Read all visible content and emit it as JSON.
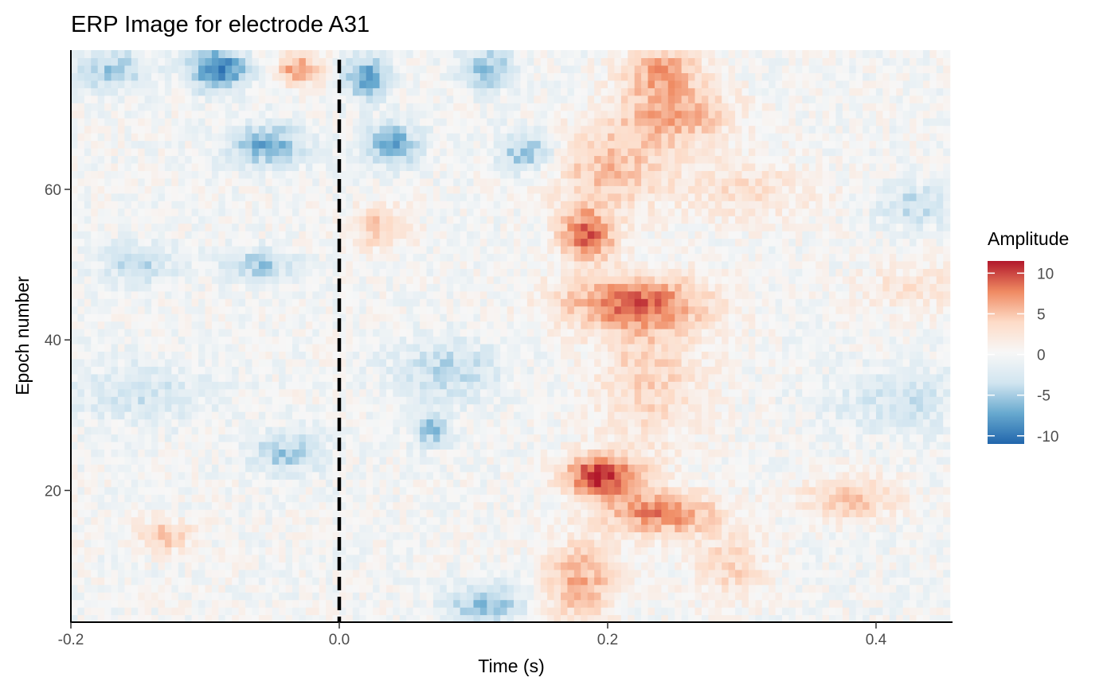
{
  "chart_data": {
    "type": "heatmap",
    "title": "ERP Image for electrode A31",
    "xlabel": "Time (s)",
    "ylabel": "Epoch number",
    "xlim": [
      -0.2,
      0.457
    ],
    "ylim": [
      2.5,
      78.5
    ],
    "x_ticks": [
      -0.2,
      0.0,
      0.2,
      0.4
    ],
    "x_tick_labels": [
      "-0.2",
      "0.0",
      "0.2",
      "0.4"
    ],
    "y_ticks": [
      20,
      40,
      60
    ],
    "y_tick_labels": [
      "20",
      "40",
      "60"
    ],
    "epochs": [
      3,
      78
    ],
    "time_step": 0.005,
    "event_marker": {
      "x": 0.0,
      "style": "dashed"
    },
    "legend": {
      "title": "Amplitude",
      "position": "right",
      "range": [
        -11,
        11.5
      ],
      "ticks": [
        10,
        5,
        0,
        -5,
        -10
      ],
      "tick_labels": [
        "10",
        "5",
        "0",
        "-5",
        "-10"
      ]
    },
    "colors": {
      "high": "#b2182b",
      "mid_high": "#ef8a62",
      "light_high": "#fddbc7",
      "zero": "#f7f7f7",
      "light_low": "#d1e5f0",
      "mid_low": "#67a9cf",
      "low": "#2166ac"
    },
    "amplitude_blobs": [
      {
        "t": 0.24,
        "e": 76,
        "amp": 6,
        "st": 0.02,
        "se": 2.5
      },
      {
        "t": 0.25,
        "e": 70,
        "amp": 6,
        "st": 0.03,
        "se": 3
      },
      {
        "t": 0.185,
        "e": 54,
        "amp": 9,
        "st": 0.015,
        "se": 2.5
      },
      {
        "t": 0.22,
        "e": 45,
        "amp": 8,
        "st": 0.04,
        "se": 2.5
      },
      {
        "t": 0.195,
        "e": 22,
        "amp": 11,
        "st": 0.02,
        "se": 2
      },
      {
        "t": 0.24,
        "e": 17,
        "amp": 8,
        "st": 0.03,
        "se": 2
      },
      {
        "t": 0.38,
        "e": 19,
        "amp": 5,
        "st": 0.025,
        "se": 2
      },
      {
        "t": 0.18,
        "e": 8,
        "amp": 6,
        "st": 0.02,
        "se": 4
      },
      {
        "t": 0.23,
        "e": 35,
        "amp": 4,
        "st": 0.03,
        "se": 7
      },
      {
        "t": 0.2,
        "e": 63,
        "amp": 5,
        "st": 0.03,
        "se": 4
      },
      {
        "t": 0.3,
        "e": 60,
        "amp": 3,
        "st": 0.04,
        "se": 3
      },
      {
        "t": 0.29,
        "e": 10,
        "amp": 4,
        "st": 0.02,
        "se": 3
      },
      {
        "t": 0.03,
        "e": 55,
        "amp": 5,
        "st": 0.015,
        "se": 2
      },
      {
        "t": -0.03,
        "e": 76,
        "amp": 7,
        "st": 0.012,
        "se": 1.5
      },
      {
        "t": -0.13,
        "e": 14,
        "amp": 5,
        "st": 0.015,
        "se": 1.5
      },
      {
        "t": -0.09,
        "e": 76,
        "amp": -10,
        "st": 0.015,
        "se": 2
      },
      {
        "t": 0.02,
        "e": 75,
        "amp": -8,
        "st": 0.012,
        "se": 2
      },
      {
        "t": -0.055,
        "e": 66,
        "amp": -7,
        "st": 0.02,
        "se": 2
      },
      {
        "t": 0.04,
        "e": 66,
        "amp": -7,
        "st": 0.015,
        "se": 2
      },
      {
        "t": 0.14,
        "e": 65,
        "amp": -6,
        "st": 0.015,
        "se": 2
      },
      {
        "t": 0.11,
        "e": 76,
        "amp": -6,
        "st": 0.015,
        "se": 2
      },
      {
        "t": -0.17,
        "e": 76,
        "amp": -5,
        "st": 0.02,
        "se": 2
      },
      {
        "t": -0.06,
        "e": 50,
        "amp": -5,
        "st": 0.02,
        "se": 1.5
      },
      {
        "t": -0.04,
        "e": 25,
        "amp": -5,
        "st": 0.02,
        "se": 2
      },
      {
        "t": 0.07,
        "e": 28,
        "amp": -6,
        "st": 0.01,
        "se": 1.5
      },
      {
        "t": 0.11,
        "e": 5,
        "amp": -6,
        "st": 0.02,
        "se": 2
      },
      {
        "t": -0.15,
        "e": 50,
        "amp": -4,
        "st": 0.02,
        "se": 2
      },
      {
        "t": -0.15,
        "e": 33,
        "amp": -3,
        "st": 0.04,
        "se": 3
      },
      {
        "t": 0.08,
        "e": 36,
        "amp": -4,
        "st": 0.03,
        "se": 3
      },
      {
        "t": 0.43,
        "e": 58,
        "amp": -4,
        "st": 0.02,
        "se": 2
      },
      {
        "t": 0.42,
        "e": 32,
        "amp": -3,
        "st": 0.04,
        "se": 3
      },
      {
        "t": 0.43,
        "e": 47,
        "amp": 3,
        "st": 0.03,
        "se": 2
      }
    ]
  }
}
